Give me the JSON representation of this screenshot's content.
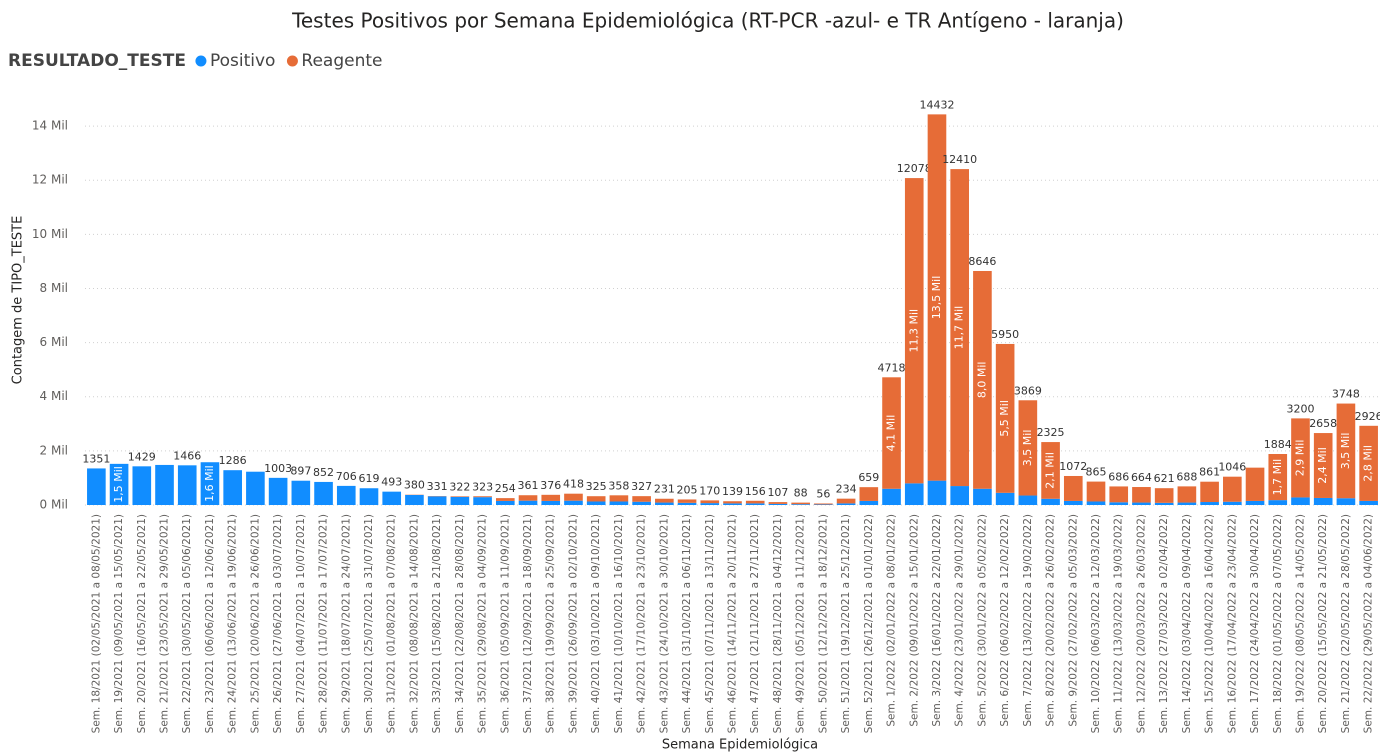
{
  "chart_data": {
    "type": "stacked_bar",
    "title": "Testes Positivos por Semana Epidemiológica (RT-PCR -azul- e TR Antígeno - laranja)",
    "legend_title": "RESULTADO_TESTE",
    "x_label": "Semana Epidemiológica",
    "y_label": "Contagem de TIPO_TESTE",
    "categories": [
      "Sem. 18/2021 (02/05/2021 a 08/05/2021)",
      "Sem. 19/2021 (09/05/2021 a 15/05/2021)",
      "Sem. 20/2021 (16/05/2021 a 22/05/2021)",
      "Sem. 21/2021 (23/05/2021 a 29/05/2021)",
      "Sem. 22/2021 (30/05/2021 a 05/06/2021)",
      "Sem. 23/2021 (06/06/2021 a 12/06/2021)",
      "Sem. 24/2021 (13/06/2021 a 19/06/2021)",
      "Sem. 25/2021 (20/06/2021 a 26/06/2021)",
      "Sem. 26/2021 (27/06/2021 a 03/07/2021)",
      "Sem. 27/2021 (04/07/2021 a 10/07/2021)",
      "Sem. 28/2021 (11/07/2021 a 17/07/2021)",
      "Sem. 29/2021 (18/07/2021 a 24/07/2021)",
      "Sem. 30/2021 (25/07/2021 a 31/07/2021)",
      "Sem. 31/2021 (01/08/2021 a 07/08/2021)",
      "Sem. 32/2021 (08/08/2021 a 14/08/2021)",
      "Sem. 33/2021 (15/08/2021 a 21/08/2021)",
      "Sem. 34/2021 (22/08/2021 a 28/08/2021)",
      "Sem. 35/2021 (29/08/2021 a 04/09/2021)",
      "Sem. 36/2021 (05/09/2021 a 11/09/2021)",
      "Sem. 37/2021 (12/09/2021 a 18/09/2021)",
      "Sem. 38/2021 (19/09/2021 a 25/09/2021)",
      "Sem. 39/2021 (26/09/2021 a 02/10/2021)",
      "Sem. 40/2021 (03/10/2021 a 09/10/2021)",
      "Sem. 41/2021 (10/10/2021 a 16/10/2021)",
      "Sem. 42/2021 (17/10/2021 a 23/10/2021)",
      "Sem. 43/2021 (24/10/2021 a 30/10/2021)",
      "Sem. 44/2021 (31/10/2021 a 06/11/2021)",
      "Sem. 45/2021 (07/11/2021 a 13/11/2021)",
      "Sem. 46/2021 (14/11/2021 a 20/11/2021)",
      "Sem. 47/2021 (21/11/2021 a 27/11/2021)",
      "Sem. 48/2021 (28/11/2021 a 04/12/2021)",
      "Sem. 49/2021 (05/12/2021 a 11/12/2021)",
      "Sem. 50/2021 (12/12/2021 a 18/12/2021)",
      "Sem. 51/2021 (19/12/2021 a 25/12/2021)",
      "Sem. 52/2021 (26/12/2021 a 01/01/2022)",
      "Sem. 1/2022 (02/01/2022 a 08/01/2022)",
      "Sem. 2/2022 (09/01/2022 a 15/01/2022)",
      "Sem. 3/2022 (16/01/2022 a 22/01/2022)",
      "Sem. 4/2022 (23/01/2022 a 29/01/2022)",
      "Sem. 5/2022 (30/01/2022 a 05/02/2022)",
      "Sem. 6/2022 (06/02/2022 a 12/02/2022)",
      "Sem. 7/2022 (13/02/2022 a 19/02/2022)",
      "Sem. 8/2022 (20/02/2022 a 26/02/2022)",
      "Sem. 9/2022 (27/02/2022 a 05/03/2022)",
      "Sem. 10/2022 (06/03/2022 a 12/03/2022)",
      "Sem. 11/2022 (13/03/2022 a 19/03/2022)",
      "Sem. 12/2022 (20/03/2022 a 26/03/2022)",
      "Sem. 13/2022 (27/03/2022 a 02/04/2022)",
      "Sem. 14/2022 (03/04/2022 a 09/04/2022)",
      "Sem. 15/2022 (10/04/2022 a 16/04/2022)",
      "Sem. 16/2022 (17/04/2022 a 23/04/2022)",
      "Sem. 17/2022 (24/04/2022 a 30/04/2022)",
      "Sem. 18/2022 (01/05/2022 a 07/05/2022)",
      "Sem. 19/2022 (08/05/2022 a 14/05/2022)",
      "Sem. 20/2022 (15/05/2022 a 21/05/2022)",
      "Sem. 21/2022 (22/05/2022 a 28/05/2022)",
      "Sem. 22/2022 (29/05/2022 a 04/06/2022)"
    ],
    "series": [
      {
        "name": "Positivo",
        "color": "#118DFF",
        "values": [
          1351,
          1520,
          1429,
          1480,
          1466,
          1580,
          1286,
          1230,
          1003,
          897,
          852,
          706,
          619,
          493,
          370,
          320,
          300,
          290,
          150,
          160,
          150,
          160,
          130,
          130,
          120,
          90,
          80,
          70,
          60,
          60,
          40,
          30,
          20,
          60,
          150,
          600,
          800,
          900,
          700,
          600,
          450,
          350,
          230,
          150,
          130,
          100,
          90,
          80,
          90,
          110,
          120,
          150,
          180,
          280,
          260,
          250,
          150
        ],
        "value_labels": [
          null,
          "1,5 Mil",
          null,
          null,
          null,
          "1,6 Mil",
          null,
          null,
          null,
          null,
          null,
          null,
          null,
          null,
          null,
          null,
          null,
          null,
          null,
          null,
          null,
          null,
          null,
          null,
          null,
          null,
          null,
          null,
          null,
          null,
          null,
          null,
          null,
          null,
          null,
          null,
          null,
          null,
          null,
          null,
          null,
          null,
          null,
          null,
          null,
          null,
          null,
          null,
          null,
          null,
          null,
          null,
          null,
          null,
          null,
          null,
          null
        ]
      },
      {
        "name": "Reagente",
        "color": "#E66C37",
        "values": [
          0,
          0,
          0,
          0,
          0,
          0,
          0,
          0,
          0,
          0,
          0,
          0,
          0,
          0,
          10,
          11,
          22,
          33,
          104,
          201,
          226,
          258,
          195,
          228,
          207,
          141,
          125,
          100,
          79,
          96,
          67,
          58,
          36,
          174,
          509,
          4118,
          11278,
          13532,
          11710,
          8046,
          5500,
          3519,
          2095,
          922,
          735,
          586,
          574,
          541,
          598,
          751,
          926,
          1230,
          1704,
          2920,
          2398,
          3498,
          2776
        ],
        "value_labels": [
          null,
          null,
          null,
          null,
          null,
          null,
          null,
          null,
          null,
          null,
          null,
          null,
          null,
          null,
          null,
          null,
          null,
          null,
          null,
          null,
          null,
          null,
          null,
          null,
          null,
          null,
          null,
          null,
          null,
          null,
          null,
          null,
          null,
          null,
          null,
          "4,1 Mil",
          "11,3 Mil",
          "13,5 Mil",
          "11,7 Mil",
          "8,0 Mil",
          "5,5 Mil",
          "3,5 Mil",
          "2,1 Mil",
          null,
          null,
          null,
          null,
          null,
          null,
          null,
          null,
          null,
          "1,7 Mil",
          "2,9 Mil",
          "2,4 Mil",
          "3,5 Mil",
          "2,8 Mil"
        ]
      }
    ],
    "totals": [
      1351,
      null,
      1429,
      null,
      1466,
      null,
      1286,
      null,
      1003,
      897,
      852,
      706,
      619,
      493,
      380,
      331,
      322,
      323,
      254,
      361,
      376,
      418,
      325,
      358,
      327,
      231,
      205,
      170,
      139,
      156,
      107,
      88,
      56,
      234,
      659,
      4718,
      12078,
      14432,
      12410,
      8646,
      5950,
      3869,
      2325,
      1072,
      865,
      686,
      664,
      621,
      688,
      861,
      1046,
      null,
      1884,
      3200,
      2658,
      3748,
      2926
    ],
    "ylim": [
      0,
      15000
    ],
    "yticks": [
      {
        "value": 0,
        "label": "0 Mil"
      },
      {
        "value": 2000,
        "label": "2 Mil"
      },
      {
        "value": 4000,
        "label": "4 Mil"
      },
      {
        "value": 6000,
        "label": "6 Mil"
      },
      {
        "value": 8000,
        "label": "8 Mil"
      },
      {
        "value": 10000,
        "label": "10 Mil"
      },
      {
        "value": 12000,
        "label": "12 Mil"
      },
      {
        "value": 14000,
        "label": "14 Mil"
      }
    ],
    "grid": true
  }
}
